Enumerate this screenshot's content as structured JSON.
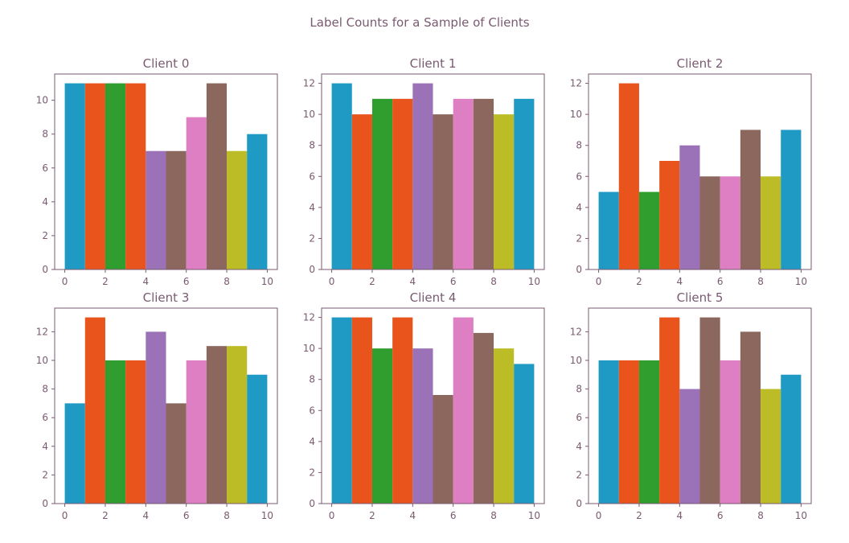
{
  "suptitle": "Label Counts for a Sample of Clients",
  "colors": [
    "#1f9ac4",
    "#e8541c",
    "#2f9e2f",
    "#e8541c",
    "#9b72b8",
    "#8c675d",
    "#de7fc4",
    "#8c675d",
    "#bcbc26",
    "#1f9ac4"
  ],
  "axis_color": "#7a5a70",
  "chart_data": [
    {
      "type": "bar",
      "title": "Client 0",
      "categories": [
        0,
        1,
        2,
        3,
        4,
        5,
        6,
        7,
        8,
        9
      ],
      "values": [
        11,
        11,
        11,
        11,
        7,
        7,
        9,
        11,
        7,
        8
      ],
      "xlim": [
        -0.5,
        10.5
      ],
      "ylim": [
        0,
        11.55
      ],
      "xticks": [
        0,
        2,
        4,
        6,
        8,
        10
      ],
      "yticks": [
        0,
        2,
        4,
        6,
        8,
        10
      ]
    },
    {
      "type": "bar",
      "title": "Client 1",
      "categories": [
        0,
        1,
        2,
        3,
        4,
        5,
        6,
        7,
        8,
        9
      ],
      "values": [
        12,
        10,
        11,
        11,
        12,
        10,
        11,
        11,
        10,
        11
      ],
      "xlim": [
        -0.5,
        10.5
      ],
      "ylim": [
        0,
        12.6
      ],
      "xticks": [
        0,
        2,
        4,
        6,
        8,
        10
      ],
      "yticks": [
        0,
        2,
        4,
        6,
        8,
        10,
        12
      ]
    },
    {
      "type": "bar",
      "title": "Client 2",
      "categories": [
        0,
        1,
        2,
        3,
        4,
        5,
        6,
        7,
        8,
        9
      ],
      "values": [
        5,
        12,
        5,
        7,
        8,
        6,
        6,
        9,
        6,
        9
      ],
      "xlim": [
        -0.5,
        10.5
      ],
      "ylim": [
        0,
        12.6
      ],
      "xticks": [
        0,
        2,
        4,
        6,
        8,
        10
      ],
      "yticks": [
        0,
        2,
        4,
        6,
        8,
        10,
        12
      ]
    },
    {
      "type": "bar",
      "title": "Client 3",
      "categories": [
        0,
        1,
        2,
        3,
        4,
        5,
        6,
        7,
        8,
        9
      ],
      "values": [
        7,
        13,
        10,
        10,
        12,
        7,
        10,
        11,
        11,
        9
      ],
      "xlim": [
        -0.5,
        10.5
      ],
      "ylim": [
        0,
        13.65
      ],
      "xticks": [
        0,
        2,
        4,
        6,
        8,
        10
      ],
      "yticks": [
        0,
        2,
        4,
        6,
        8,
        10,
        12
      ]
    },
    {
      "type": "bar",
      "title": "Client 4",
      "categories": [
        0,
        1,
        2,
        3,
        4,
        5,
        6,
        7,
        8,
        9
      ],
      "values": [
        12,
        12,
        10,
        12,
        10,
        7,
        12,
        11,
        10,
        9
      ],
      "xlim": [
        -0.5,
        10.5
      ],
      "ylim": [
        0,
        12.6
      ],
      "xticks": [
        0,
        2,
        4,
        6,
        8,
        10
      ],
      "yticks": [
        0,
        2,
        4,
        6,
        8,
        10,
        12
      ]
    },
    {
      "type": "bar",
      "title": "Client 5",
      "categories": [
        0,
        1,
        2,
        3,
        4,
        5,
        6,
        7,
        8,
        9
      ],
      "values": [
        10,
        10,
        10,
        13,
        8,
        13,
        10,
        12,
        8,
        9
      ],
      "xlim": [
        -0.5,
        10.5
      ],
      "ylim": [
        0,
        13.65
      ],
      "xticks": [
        0,
        2,
        4,
        6,
        8,
        10
      ],
      "yticks": [
        0,
        2,
        4,
        6,
        8,
        10,
        12
      ]
    }
  ]
}
